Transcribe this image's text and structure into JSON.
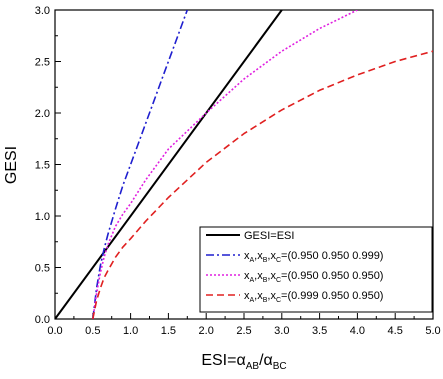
{
  "chart_data": {
    "type": "line",
    "title": "",
    "xlabel": "ESI=α",
    "xlabel_sub1": "AB",
    "xlabel_mid": "/α",
    "xlabel_sub2": "BC",
    "ylabel": "GESI",
    "xlim": [
      0.0,
      5.0
    ],
    "ylim": [
      0.0,
      3.0
    ],
    "xticks": [
      "0.0",
      "0.5",
      "1.0",
      "1.5",
      "2.0",
      "2.5",
      "3.0",
      "3.5",
      "4.0",
      "4.5",
      "5.0"
    ],
    "yticks": [
      "0.0",
      "0.5",
      "1.0",
      "1.5",
      "2.0",
      "2.5",
      "3.0"
    ],
    "grid": false,
    "legend_position": "bottom-right",
    "series": [
      {
        "name": "GESI=ESI",
        "color": "#000000",
        "dash": "solid",
        "x": [
          0.0,
          3.0
        ],
        "y": [
          0.0,
          3.0
        ]
      },
      {
        "name": "x(0.950 0.950 0.999)",
        "legend_prefix": "x",
        "legend_subs": [
          "A",
          "B",
          "C"
        ],
        "legend_value": "=(0.950 0.950 0.999)",
        "color": "#1f1fcf",
        "dash": "dashdot",
        "x": [
          0.5,
          0.55,
          0.6,
          0.65,
          0.7,
          0.8,
          0.9,
          1.0,
          1.1,
          1.2,
          1.3,
          1.4,
          1.5,
          1.6,
          1.7,
          1.75
        ],
        "y": [
          0.0,
          0.3,
          0.52,
          0.68,
          0.82,
          1.07,
          1.3,
          1.5,
          1.7,
          1.9,
          2.1,
          2.3,
          2.5,
          2.7,
          2.9,
          3.0
        ]
      },
      {
        "name": "x(0.950 0.950 0.950)",
        "legend_prefix": "x",
        "legend_subs": [
          "A",
          "B",
          "C"
        ],
        "legend_value": "=(0.950 0.950 0.950)",
        "color": "#e020e0",
        "dash": "dotted",
        "x": [
          0.5,
          0.55,
          0.6,
          0.65,
          0.7,
          0.8,
          0.9,
          1.0,
          1.2,
          1.5,
          2.0,
          2.5,
          3.0,
          3.5,
          4.0
        ],
        "y": [
          0.0,
          0.25,
          0.45,
          0.6,
          0.72,
          0.9,
          1.02,
          1.12,
          1.35,
          1.65,
          2.0,
          2.33,
          2.6,
          2.82,
          3.0
        ]
      },
      {
        "name": "x(0.999 0.950 0.950)",
        "legend_prefix": "x",
        "legend_subs": [
          "A",
          "B",
          "C"
        ],
        "legend_value": "=(0.999 0.950 0.950)",
        "color": "#e02020",
        "dash": "dashed",
        "x": [
          0.5,
          0.55,
          0.6,
          0.65,
          0.7,
          0.8,
          0.9,
          1.0,
          1.2,
          1.5,
          2.0,
          2.5,
          3.0,
          3.5,
          4.0,
          4.5,
          5.0
        ],
        "y": [
          0.0,
          0.18,
          0.3,
          0.4,
          0.47,
          0.6,
          0.7,
          0.78,
          0.95,
          1.18,
          1.52,
          1.8,
          2.03,
          2.22,
          2.37,
          2.5,
          2.6
        ]
      }
    ]
  }
}
